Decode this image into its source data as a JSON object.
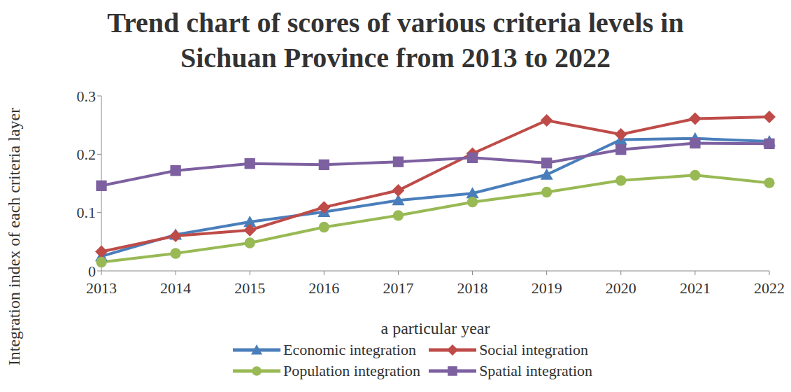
{
  "chart_data": {
    "type": "line",
    "title": "Trend chart of scores of various criteria levels in Sichuan Province from 2013 to 2022",
    "x_label": "a particular year",
    "y_label": "Integration index of each criteria layer",
    "categories": [
      "2013",
      "2014",
      "2015",
      "2016",
      "2017",
      "2018",
      "2019",
      "2020",
      "2021",
      "2022"
    ],
    "series": [
      {
        "name": "Economic integration",
        "color": "#4a7ebb",
        "marker": "triangle",
        "values": [
          0.025,
          0.062,
          0.084,
          0.101,
          0.121,
          0.133,
          0.165,
          0.225,
          0.227,
          0.222
        ]
      },
      {
        "name": "Social integration",
        "color": "#be4b48",
        "marker": "diamond",
        "values": [
          0.033,
          0.06,
          0.07,
          0.109,
          0.138,
          0.201,
          0.258,
          0.234,
          0.261,
          0.264
        ]
      },
      {
        "name": "Population integration",
        "color": "#98b954",
        "marker": "circle",
        "values": [
          0.015,
          0.03,
          0.048,
          0.075,
          0.095,
          0.118,
          0.135,
          0.155,
          0.164,
          0.151
        ]
      },
      {
        "name": "Spatial integration",
        "color": "#7d60a0",
        "marker": "square",
        "values": [
          0.146,
          0.172,
          0.184,
          0.182,
          0.187,
          0.194,
          0.185,
          0.208,
          0.219,
          0.218
        ]
      }
    ],
    "ylim": [
      0,
      0.3
    ],
    "yticks": [
      0,
      0.1,
      0.2,
      0.3
    ],
    "grid": false,
    "legend": "bottom"
  }
}
